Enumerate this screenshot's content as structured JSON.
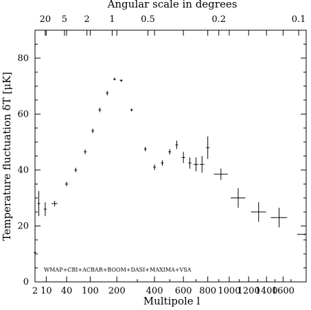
{
  "chart_data": {
    "type": "scatter",
    "title": "",
    "xlabel": "Multipole l",
    "ylabel": "Temperature fluctuation δT  [μK]",
    "top_axis_label": "Angular scale in degrees",
    "legend_text": "WMAP+CBI+ACBAR+BOOM+DASI+MAXIMA+VSA",
    "x_scale": "square-root",
    "xlim": [
      2,
      1900
    ],
    "ylim": [
      0,
      90
    ],
    "grid": false,
    "x_ticks": [
      {
        "value": 2,
        "label": "2"
      },
      {
        "value": 10,
        "label": "10"
      },
      {
        "value": 40,
        "label": "40"
      },
      {
        "value": 100,
        "label": "100"
      },
      {
        "value": 200,
        "label": "200"
      },
      {
        "value": 400,
        "label": "400"
      },
      {
        "value": 600,
        "label": "600"
      },
      {
        "value": 800,
        "label": "800"
      },
      {
        "value": 1000,
        "label": "1000"
      },
      {
        "value": 1200,
        "label": "1200"
      },
      {
        "value": 1400,
        "label": "1400"
      },
      {
        "value": 1600,
        "label": "1600"
      }
    ],
    "y_ticks": [
      {
        "value": 0,
        "label": "0"
      },
      {
        "value": 20,
        "label": "20"
      },
      {
        "value": 40,
        "label": "40"
      },
      {
        "value": 60,
        "label": "60"
      },
      {
        "value": 80,
        "label": "80"
      }
    ],
    "top_ticks": [
      {
        "value": 20,
        "label": "20"
      },
      {
        "value": 5,
        "label": "5"
      },
      {
        "value": 2,
        "label": "2"
      },
      {
        "value": 1,
        "label": "1"
      },
      {
        "value": 0.5,
        "label": "0.5"
      },
      {
        "value": 0.2,
        "label": "0.2"
      },
      {
        "value": 0.1,
        "label": "0.1"
      }
    ],
    "series": [
      {
        "points": [
          {
            "l": 2,
            "dT": 10.5,
            "dl_lo": 0,
            "dl_hi": 0,
            "err": 5
          },
          {
            "l": 4,
            "dT": 28,
            "dl_lo": 0,
            "dl_hi": 0,
            "err": 4.5
          },
          {
            "l": 9,
            "dT": 26,
            "dl_lo": 0,
            "dl_hi": 0,
            "err": 2.5
          },
          {
            "l": 20,
            "dT": 28,
            "dl_lo": 4,
            "dl_hi": 4,
            "err": 1
          },
          {
            "l": 40,
            "dT": 35,
            "dl_lo": 3,
            "dl_hi": 3,
            "err": 0.8
          },
          {
            "l": 60,
            "dT": 40,
            "dl_lo": 3,
            "dl_hi": 3,
            "err": 0.8
          },
          {
            "l": 85,
            "dT": 46.5,
            "dl_lo": 3,
            "dl_hi": 3,
            "err": 0.8
          },
          {
            "l": 108,
            "dT": 54,
            "dl_lo": 3,
            "dl_hi": 3,
            "err": 0.8
          },
          {
            "l": 132,
            "dT": 61.5,
            "dl_lo": 3,
            "dl_hi": 3,
            "err": 0.8
          },
          {
            "l": 160,
            "dT": 67.5,
            "dl_lo": 3,
            "dl_hi": 3,
            "err": 0.8
          },
          {
            "l": 190,
            "dT": 72.5,
            "dl_lo": 5,
            "dl_hi": 5,
            "err": 0.5
          },
          {
            "l": 220,
            "dT": 72,
            "dl_lo": 5,
            "dl_hi": 5,
            "err": 0.5
          },
          {
            "l": 270,
            "dT": 61.5,
            "dl_lo": 6,
            "dl_hi": 6,
            "err": 0.5
          },
          {
            "l": 345,
            "dT": 47.5,
            "dl_lo": 5,
            "dl_hi": 5,
            "err": 0.8
          },
          {
            "l": 400,
            "dT": 41,
            "dl_lo": 5,
            "dl_hi": 5,
            "err": 1
          },
          {
            "l": 450,
            "dT": 42.5,
            "dl_lo": 6,
            "dl_hi": 6,
            "err": 1
          },
          {
            "l": 500,
            "dT": 46.5,
            "dl_lo": 8,
            "dl_hi": 8,
            "err": 1
          },
          {
            "l": 550,
            "dT": 49,
            "dl_lo": 10,
            "dl_hi": 10,
            "err": 1.5
          },
          {
            "l": 600,
            "dT": 44.5,
            "dl_lo": 12,
            "dl_hi": 12,
            "err": 2
          },
          {
            "l": 650,
            "dT": 42.5,
            "dl_lo": 12,
            "dl_hi": 12,
            "err": 2
          },
          {
            "l": 700,
            "dT": 42,
            "dl_lo": 20,
            "dl_hi": 20,
            "err": 2.5
          },
          {
            "l": 750,
            "dT": 42,
            "dl_lo": 20,
            "dl_hi": 20,
            "err": 3
          },
          {
            "l": 800,
            "dT": 48,
            "dl_lo": 15,
            "dl_hi": 15,
            "err": 4
          },
          {
            "l": 920,
            "dT": 38.5,
            "dl_lo": 65,
            "dl_hi": 65,
            "err": 2
          },
          {
            "l": 1090,
            "dT": 30,
            "dl_lo": 75,
            "dl_hi": 75,
            "err": 3.5
          },
          {
            "l": 1310,
            "dT": 25,
            "dl_lo": 85,
            "dl_hi": 85,
            "err": 3.5
          },
          {
            "l": 1550,
            "dT": 23,
            "dl_lo": 100,
            "dl_hi": 100,
            "err": 3.5
          },
          {
            "l": 1880,
            "dT": 17,
            "dl_lo": 100,
            "dl_hi": 20,
            "err": 0
          }
        ]
      }
    ]
  }
}
